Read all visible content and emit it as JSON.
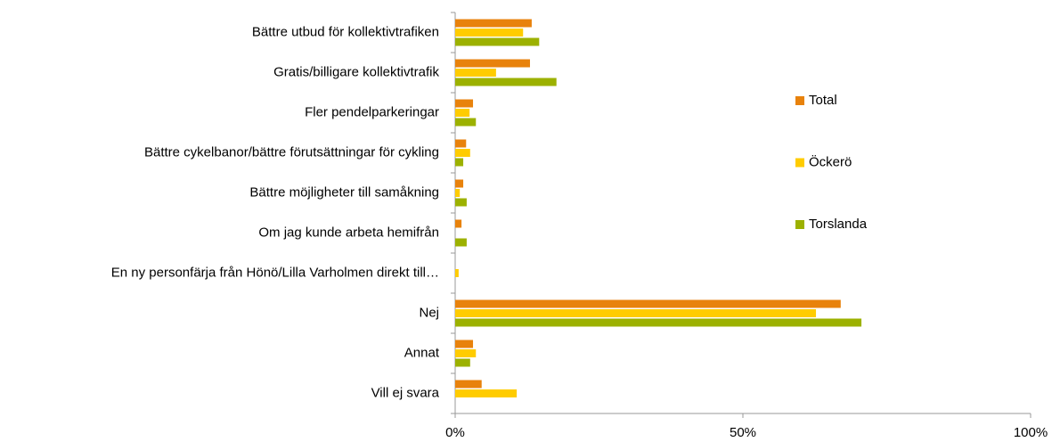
{
  "chart_data": {
    "type": "bar",
    "orientation": "horizontal",
    "categories": [
      "Bättre utbud för kollektivtrafiken",
      "Gratis/billigare kollektivtrafik",
      "Fler pendelparkeringar",
      "Bättre cykelbanor/bättre förutsättningar för cykling",
      "Bättre möjligheter till samåkning",
      "Om jag kunde arbeta hemifrån",
      "En ny personfärja från Hönö/Lilla Varholmen direkt till…",
      "Nej",
      "Annat",
      "Vill ej svara"
    ],
    "series": [
      {
        "name": "Total",
        "color": "#e8820c",
        "values": [
          13.3,
          13.0,
          3.1,
          1.9,
          1.4,
          1.1,
          0,
          67.0,
          3.1,
          4.6
        ]
      },
      {
        "name": "Öckerö",
        "color": "#ffcc00",
        "values": [
          11.8,
          7.1,
          2.5,
          2.6,
          0.8,
          0,
          0.6,
          62.7,
          3.6,
          10.7
        ]
      },
      {
        "name": "Torslanda",
        "color": "#9cb100",
        "values": [
          14.6,
          17.6,
          3.6,
          1.4,
          2.0,
          2.0,
          0,
          70.6,
          2.6,
          0
        ]
      }
    ],
    "xlim": [
      0,
      100
    ],
    "xticks": [
      {
        "value": 0,
        "label": "0%"
      },
      {
        "value": 50,
        "label": "50%"
      },
      {
        "value": 100,
        "label": "100%"
      }
    ],
    "legend": "right"
  }
}
